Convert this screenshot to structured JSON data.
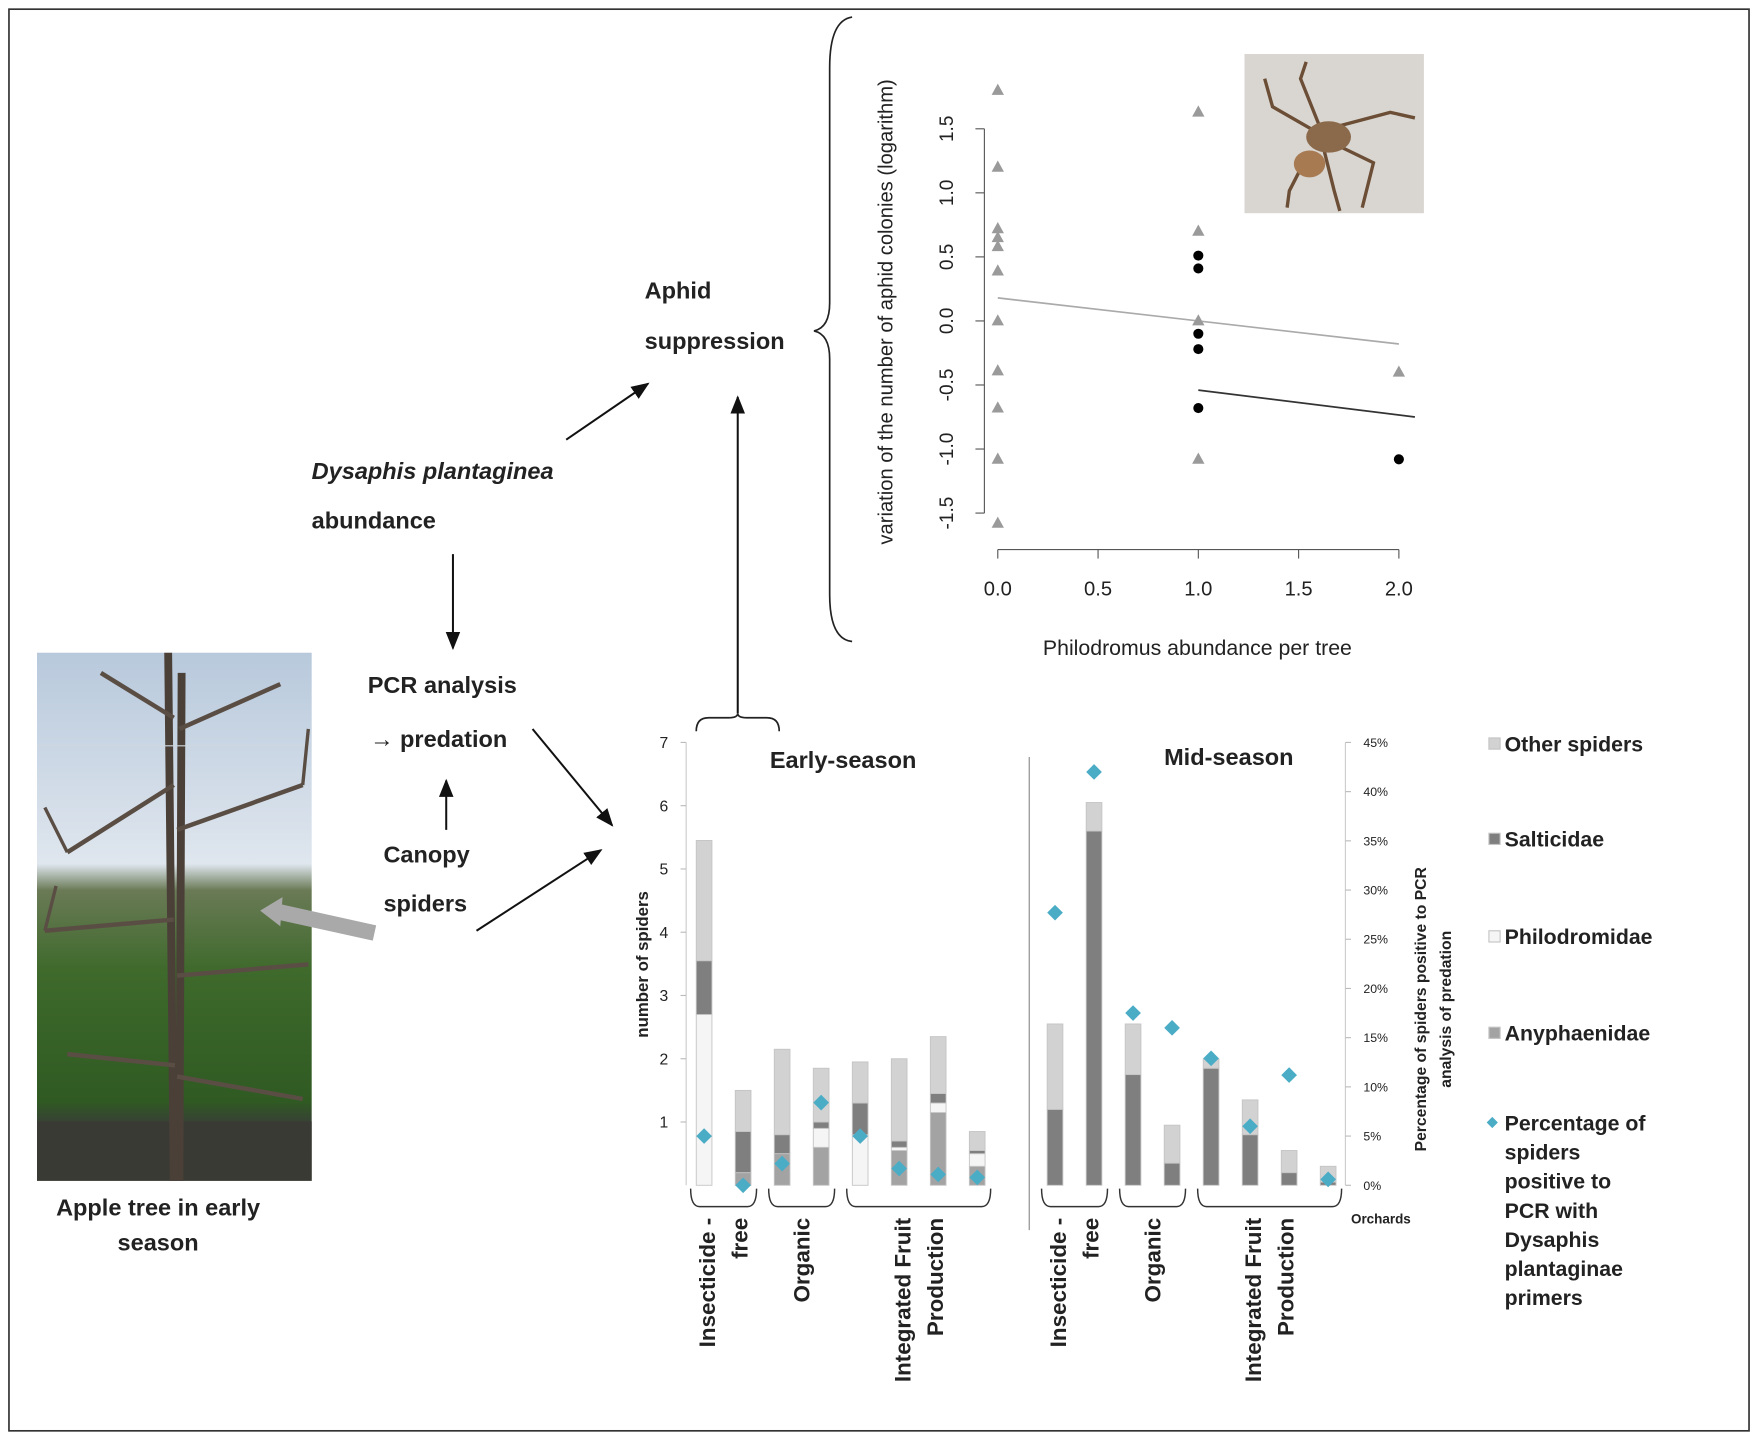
{
  "diagram": {
    "nodes": [
      {
        "lines": [
          "Aphid",
          "suppression"
        ]
      },
      {
        "lines": [
          "Dysaphis plantaginea",
          "abundance"
        ]
      },
      {
        "lines": [
          "PCR analysis",
          "→ predation"
        ]
      },
      {
        "lines": [
          "Canopy",
          "spiders"
        ]
      },
      {
        "lines": [
          "Apple tree in early",
          "season"
        ]
      }
    ]
  },
  "chart_data": [
    {
      "type": "scatter",
      "xlabel": "Philodromus abundance per tree",
      "ylabel": "variation of the number of aphid colonies (logarithm)",
      "xlim": [
        -0.05,
        2.08
      ],
      "ylim": [
        -1.75,
        1.9
      ],
      "xticks": [
        {
          "value": 0,
          "label": "0.0"
        },
        0.5,
        {
          "value": 1,
          "label": "1.0"
        },
        1.5,
        {
          "value": 2,
          "label": "2.0"
        }
      ],
      "yticks": [
        {
          "value": -1.5,
          "label": "-1.5"
        },
        {
          "value": -1,
          "label": "-1.0"
        },
        {
          "value": -0.5,
          "label": "-0.5"
        },
        {
          "value": 0,
          "label": "0.0"
        },
        0.5,
        {
          "value": 1,
          "label": "1.0"
        },
        1.5
      ],
      "series": [
        {
          "marker": "triangle",
          "color": "#9a9a9a",
          "x": [
            0,
            0,
            0,
            0,
            0,
            0,
            0,
            0,
            0,
            0,
            0,
            1,
            1,
            1,
            1,
            2
          ],
          "values": [
            1.8,
            1.2,
            0.72,
            0.65,
            0.58,
            0.39,
            0,
            -0.39,
            -0.68,
            -1.08,
            -1.58,
            1.63,
            0.7,
            0,
            -1.08,
            -0.4
          ]
        },
        {
          "marker": "circle",
          "color": "#000000",
          "x": [
            1,
            1,
            1,
            1,
            1,
            2
          ],
          "values": [
            0.51,
            0.41,
            -0.1,
            -0.22,
            -0.68,
            -1.08
          ]
        }
      ],
      "fit_lines": [
        {
          "color": "#aaaaaa",
          "x": [
            0,
            2
          ],
          "values": [
            0.18,
            -0.18
          ]
        },
        {
          "color": "#333333",
          "x": [
            1,
            2.08
          ],
          "values": [
            -0.54,
            -0.75
          ]
        }
      ]
    },
    {
      "type": "bar",
      "stacked": true,
      "ylabel": "number of spiders",
      "y2label": [
        "Percentage of spiders positive to PCR",
        "analysis of predation"
      ],
      "xlabel": "Orchards",
      "ylim": [
        0,
        7
      ],
      "yticks": [
        1,
        2,
        3,
        4,
        5,
        6,
        7
      ],
      "y2lim": [
        0,
        45
      ],
      "y2ticks": [
        {
          "value": 0,
          "label": "0%"
        },
        {
          "value": 5,
          "label": "5%"
        },
        {
          "value": 10,
          "label": "10%"
        },
        {
          "value": 15,
          "label": "15%"
        },
        {
          "value": 20,
          "label": "20%"
        },
        {
          "value": 25,
          "label": "25%"
        },
        {
          "value": 30,
          "label": "30%"
        },
        {
          "value": 35,
          "label": "35%"
        },
        {
          "value": 40,
          "label": "40%"
        },
        {
          "value": 45,
          "label": "45%"
        }
      ],
      "categories": [
        null,
        null,
        null,
        null,
        null,
        null,
        null,
        null,
        null,
        null,
        null,
        null,
        null,
        null,
        null,
        null
      ],
      "panels": [
        {
          "title": "Early-season",
          "group_labels": [
            [
              "Insecticide -",
              "free"
            ],
            [
              "Organic"
            ],
            [
              "Integrated Fruit",
              "Production"
            ]
          ]
        },
        {
          "title": "Mid-season",
          "group_labels": [
            [
              "Insecticide -",
              "free"
            ],
            [
              "Organic"
            ],
            [
              "Integrated Fruit",
              "Production"
            ]
          ]
        }
      ],
      "series": [
        {
          "name": "Other spiders",
          "color": "#d2d2d2",
          "values": [
            1.9,
            0.65,
            1.35,
            0.85,
            0.65,
            1.3,
            0.9,
            0.3,
            1.35,
            0.45,
            0.8,
            0.6,
            0.15,
            0.55,
            0.35,
            0.25
          ]
        },
        {
          "name": "Salticidae",
          "color": "#7f7f7f",
          "values": [
            0.85,
            0.65,
            0.3,
            0.1,
            0.5,
            0.1,
            0.15,
            0.05,
            1.2,
            5.6,
            1.75,
            0.35,
            1.85,
            0.8,
            0.2,
            0.05
          ]
        },
        {
          "name": "Philodromidae",
          "color": "#f5f5f5",
          "values": [
            2.7,
            0,
            0,
            0.3,
            0.8,
            0.05,
            0.15,
            0.2,
            0,
            0,
            0,
            0,
            0,
            0,
            0,
            0
          ]
        },
        {
          "name": "Anyphaenidae",
          "color": "#a3a3a3",
          "values": [
            0,
            0.2,
            0.5,
            0.6,
            0,
            0.55,
            1.15,
            0.3,
            0,
            0,
            0,
            0,
            0,
            0,
            0,
            0
          ]
        },
        {
          "name": "Percentage of spiders positive to PCR with Dysaphis plantaginae primers",
          "type": "point",
          "axis": "y2",
          "color": "#4bacc6",
          "values": [
            5,
            0,
            2.2,
            8.4,
            5,
            1.7,
            1.1,
            0.8,
            27.7,
            42,
            17.5,
            16,
            12.9,
            6,
            11.2,
            0.6
          ]
        }
      ]
    }
  ]
}
